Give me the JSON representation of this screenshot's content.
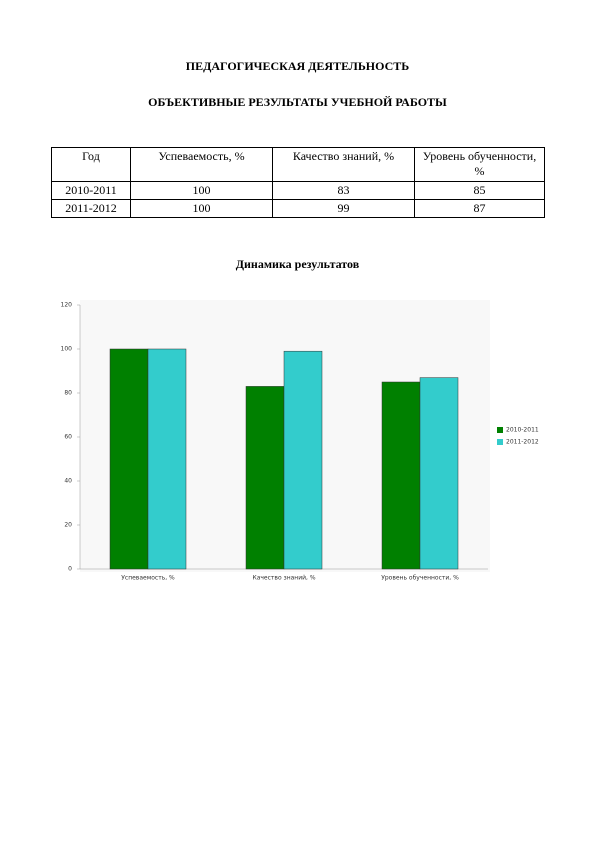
{
  "header": {
    "title": "ПЕДАГОГИЧЕСКАЯ ДЕЯТЕЛЬНОСТЬ",
    "subtitle": "ОБЪЕКТИВНЫЕ РЕЗУЛЬТАТЫ УЧЕБНОЙ РАБОТЫ"
  },
  "table": {
    "columns": [
      "Год",
      "Успеваемость, %",
      "Качество знаний, %",
      "Уровень обученности, %"
    ],
    "rows": [
      [
        "2010-2011",
        100,
        83,
        85
      ],
      [
        "2011-2012",
        100,
        99,
        87
      ]
    ]
  },
  "chart_data": {
    "type": "bar",
    "title": "Динамика результатов",
    "categories": [
      "Успеваемость, %",
      "Качество знаний, %",
      "Уровень обученности, %"
    ],
    "series": [
      {
        "name": "2010-2011",
        "color": "#008000",
        "values": [
          100,
          83,
          85
        ]
      },
      {
        "name": "2011-2012",
        "color": "#33cccc",
        "values": [
          100,
          99,
          87
        ]
      }
    ],
    "ylim": [
      0,
      120
    ],
    "yticks": [
      0,
      20,
      40,
      60,
      80,
      100,
      120
    ]
  }
}
